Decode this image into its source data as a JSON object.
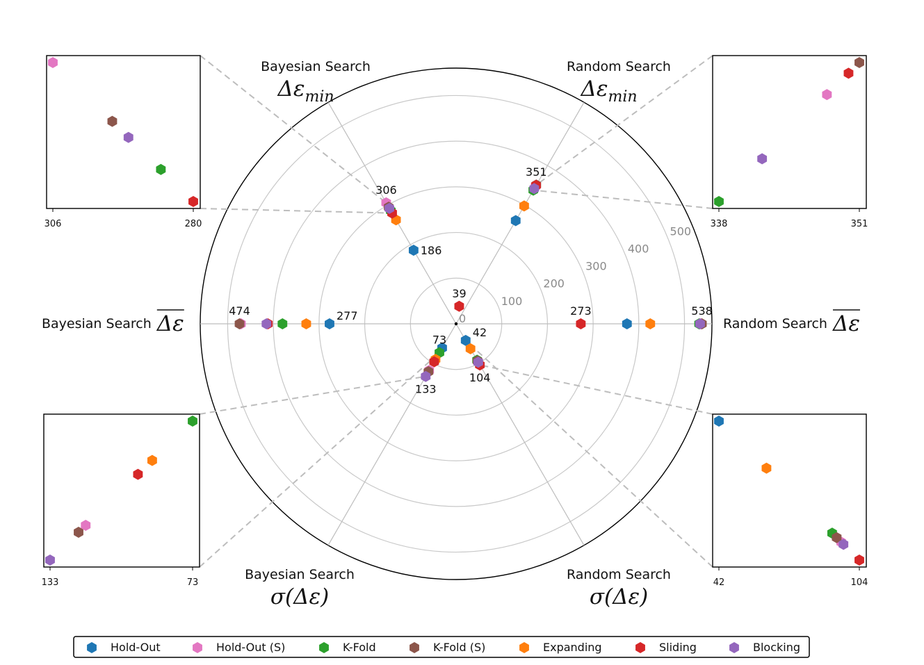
{
  "chart_data": {
    "type": "scatter",
    "subtype": "polar-radar",
    "r_ticks": [
      "0",
      "100",
      "200",
      "300",
      "400",
      "500"
    ],
    "r_range": [
      0,
      560
    ],
    "axes": [
      {
        "id": "bayes_min",
        "name": "Bayesian Search",
        "math": "Δε",
        "sub": "min",
        "over": false,
        "sigma": false,
        "angle_deg": 120
      },
      {
        "id": "rand_min",
        "name": "Random Search",
        "math": "Δε",
        "sub": "min",
        "over": false,
        "sigma": false,
        "angle_deg": 60
      },
      {
        "id": "bayes_mean",
        "name": "Bayesian Search",
        "math": "Δε",
        "sub": "",
        "over": true,
        "sigma": false,
        "angle_deg": 180
      },
      {
        "id": "rand_mean",
        "name": "Random Search",
        "math": "Δε",
        "sub": "",
        "over": true,
        "sigma": false,
        "angle_deg": 0
      },
      {
        "id": "bayes_std",
        "name": "Bayesian Search",
        "math": "σ(Δε)",
        "sub": "",
        "over": false,
        "sigma": true,
        "angle_deg": 240
      },
      {
        "id": "rand_std",
        "name": "Random Search",
        "math": "σ(Δε)",
        "sub": "",
        "over": false,
        "sigma": true,
        "angle_deg": 300
      }
    ],
    "series": [
      {
        "name": "Hold-Out",
        "color": "#1f77b4",
        "values": {
          "bayes_min": 186,
          "rand_min": 261,
          "bayes_mean": 277,
          "rand_mean": 374,
          "bayes_std": 61,
          "rand_std": 42
        }
      },
      {
        "name": "Hold-Out (S)",
        "color": "#e377c2",
        "values": {
          "bayes_min": 306,
          "rand_min": 348,
          "bayes_mean": 471,
          "rand_mean": 536,
          "bayes_std": 118,
          "rand_std": 96
        }
      },
      {
        "name": "K-Fold",
        "color": "#2ca02c",
        "values": {
          "bayes_min": 286,
          "rand_min": 338,
          "bayes_mean": 380,
          "rand_mean": 532,
          "bayes_std": 73,
          "rand_std": 92
        }
      },
      {
        "name": "K-Fold (S)",
        "color": "#8c564b",
        "values": {
          "bayes_min": 295,
          "rand_min": 351,
          "bayes_mean": 474,
          "rand_mean": 538,
          "bayes_std": 121,
          "rand_std": 94
        }
      },
      {
        "name": "Expanding",
        "color": "#ff7f0e",
        "values": {
          "bayes_min": 263,
          "rand_min": 298,
          "bayes_mean": 328,
          "rand_mean": 425,
          "bayes_std": 90,
          "rand_std": 63
        }
      },
      {
        "name": "Sliding",
        "color": "#d62728",
        "values": {
          "bayes_min": 280,
          "rand_min": 350,
          "bayes_mean": 412,
          "rand_mean": 273,
          "bayes_std": 96,
          "rand_std": 104
        }
      },
      {
        "name": "Blocking",
        "color": "#9467bd",
        "values": {
          "bayes_min": 292,
          "rand_min": 342,
          "bayes_mean": 415,
          "rand_mean": 534,
          "bayes_std": 133,
          "rand_std": 97
        }
      }
    ],
    "extra_points": [
      {
        "series": "Sliding",
        "angle_deg": 80,
        "value": 39
      }
    ],
    "value_labels": [
      {
        "axis": "bayes_min",
        "text": "306",
        "value": 306,
        "pos": "above"
      },
      {
        "axis": "bayes_min",
        "text": "186",
        "value": 186,
        "pos": "right"
      },
      {
        "axis": "rand_min",
        "text": "351",
        "value": 351,
        "pos": "above"
      },
      {
        "axis": "bayes_mean",
        "text": "474",
        "value": 474,
        "pos": "above"
      },
      {
        "axis": "bayes_mean",
        "text": "277",
        "value": 277,
        "pos": "aboveright"
      },
      {
        "axis": "rand_mean",
        "text": "273",
        "value": 273,
        "pos": "above"
      },
      {
        "axis": "rand_mean",
        "text": "538",
        "value": 538,
        "pos": "above"
      },
      {
        "axis": "bayes_std",
        "text": "73",
        "value": 73,
        "pos": "above"
      },
      {
        "axis": "bayes_std",
        "text": "133",
        "value": 133,
        "pos": "below"
      },
      {
        "axis": "rand_std",
        "text": "42",
        "value": 42,
        "pos": "aboveright"
      },
      {
        "axis": "rand_std",
        "text": "104",
        "value": 104,
        "pos": "below"
      },
      {
        "axis": "extra",
        "text": "39",
        "value": 39,
        "pos": "above"
      }
    ],
    "insets": [
      {
        "axis": "bayes_min",
        "corner": "top-left",
        "lo": "306",
        "hi": "280",
        "from": 306,
        "to": 280
      },
      {
        "axis": "rand_min",
        "corner": "top-right",
        "lo": "338",
        "hi": "351",
        "from": 338,
        "to": 351
      },
      {
        "axis": "bayes_std",
        "corner": "bottom-left",
        "lo": "133",
        "hi": "73",
        "from": 133,
        "to": 73
      },
      {
        "axis": "rand_std",
        "corner": "bottom-right",
        "lo": "42",
        "hi": "104",
        "from": 42,
        "to": 104
      }
    ],
    "legend": [
      "Hold-Out",
      "Hold-Out (S)",
      "K-Fold",
      "K-Fold (S)",
      "Expanding",
      "Sliding",
      "Blocking"
    ],
    "legend_position": "bottom-center"
  }
}
